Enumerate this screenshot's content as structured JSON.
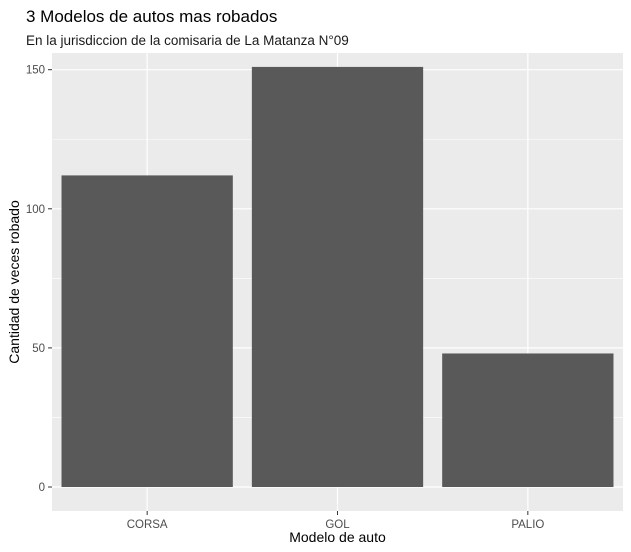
{
  "chart_data": {
    "type": "bar",
    "title": "3 Modelos de autos mas robados",
    "subtitle": "En la jurisdiccion de la comisaria de La Matanza N°09",
    "xlabel": "Modelo de auto",
    "ylabel": "Cantidad de veces robado",
    "categories": [
      "CORSA",
      "GOL",
      "PALIO"
    ],
    "values": [
      112,
      151,
      48
    ],
    "ylim": [
      0,
      156
    ],
    "yticks": [
      0,
      50,
      100,
      150
    ],
    "grid": true,
    "legend": "none",
    "colors": {
      "bar": "#595959",
      "panel": "#ebebeb",
      "grid_major": "#ffffff",
      "axis_text": "#4d4d4d",
      "title_text": "#000000"
    }
  }
}
